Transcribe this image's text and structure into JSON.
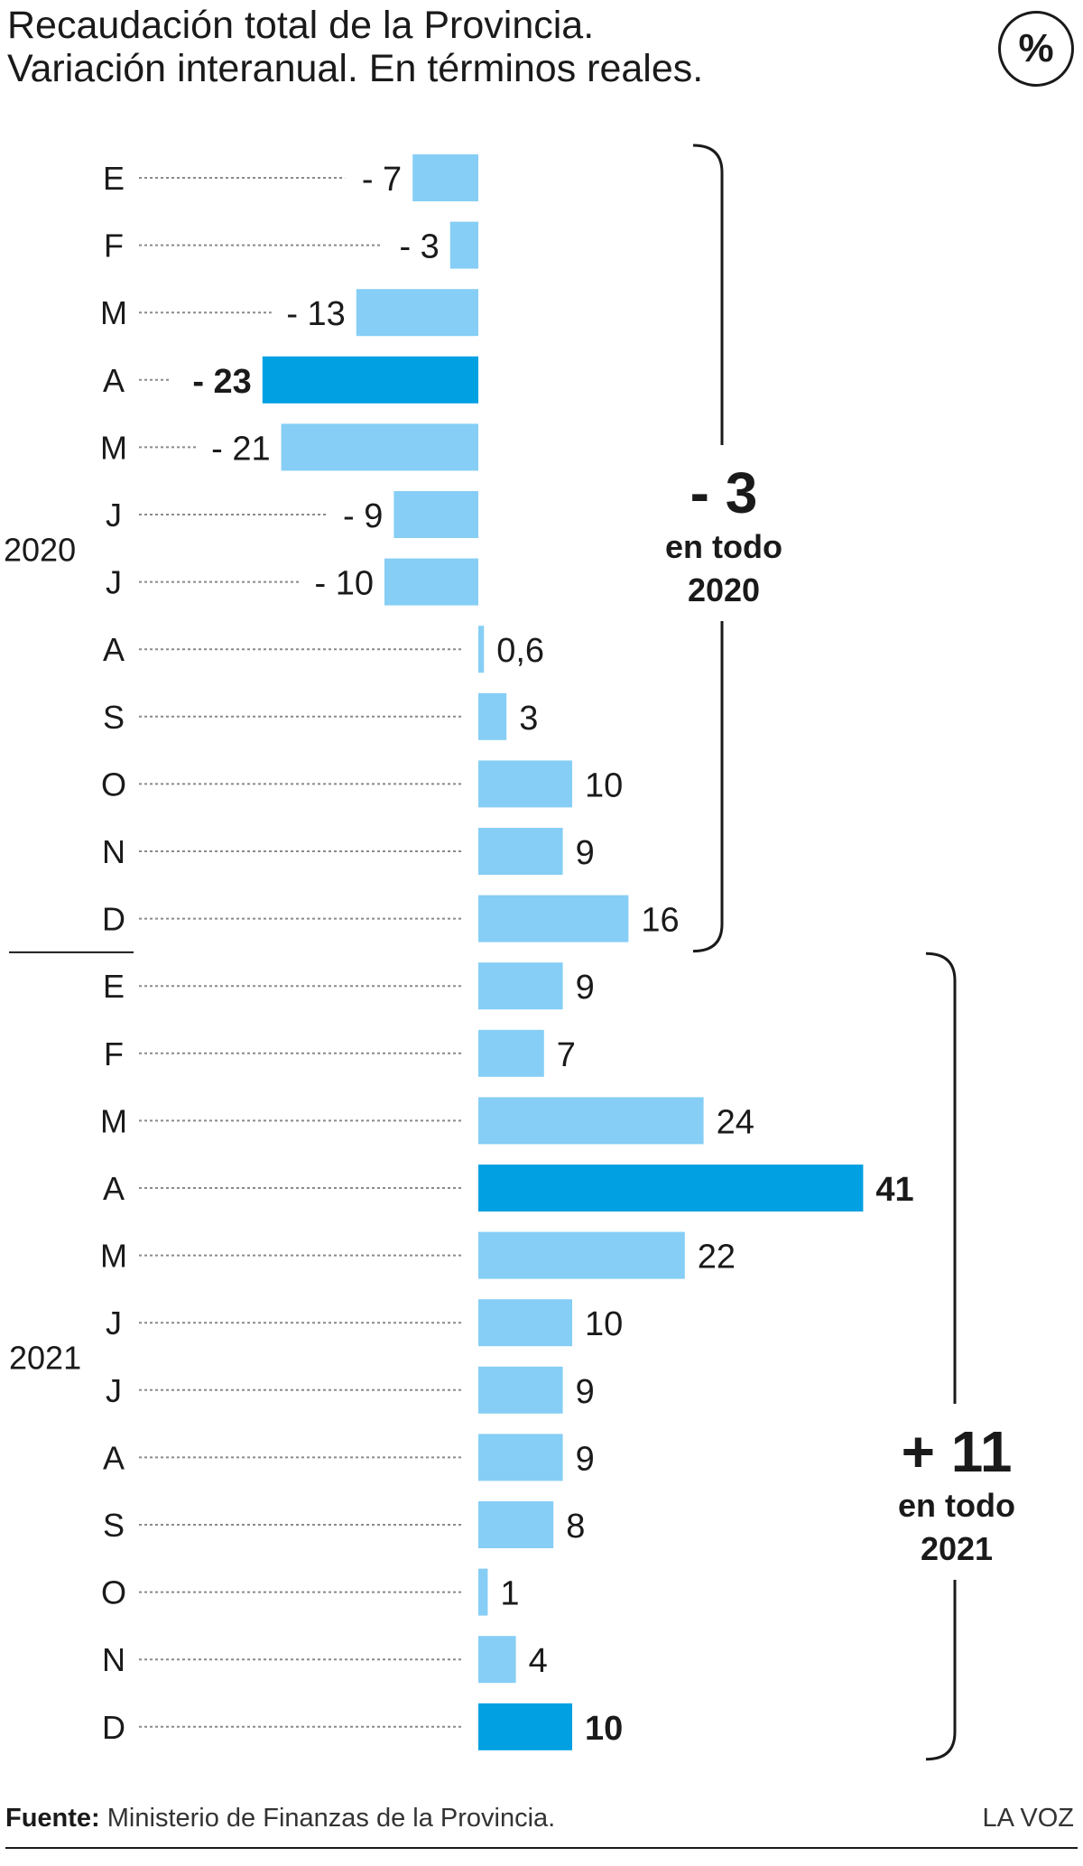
{
  "header": {
    "title_line1": "Recaudación total de la Provincia.",
    "title_line2": "Variación interanual. En términos reales.",
    "unit": "%"
  },
  "chart_data": {
    "type": "bar",
    "orientation": "horizontal",
    "title": "Recaudación total de la Provincia. Variación interanual. En términos reales.",
    "unit": "%",
    "groups": [
      {
        "year": "2020",
        "categories": [
          "E",
          "F",
          "M",
          "A",
          "M",
          "J",
          "J",
          "A",
          "S",
          "O",
          "N",
          "D"
        ],
        "values": [
          -7,
          -3,
          -13,
          -23,
          -21,
          -9,
          -10,
          0.6,
          3,
          10,
          9,
          16
        ],
        "labels": [
          "- 7",
          "- 3",
          "- 13",
          "- 23",
          "- 21",
          "- 9",
          "- 10",
          "0,6",
          "3",
          "10",
          "9",
          "16"
        ],
        "highlight": [
          false,
          false,
          false,
          true,
          false,
          false,
          false,
          false,
          false,
          false,
          false,
          false
        ],
        "annual_value": "- 3",
        "annual_label_line1": "en todo",
        "annual_label_line2": "2020"
      },
      {
        "year": "2021",
        "categories": [
          "E",
          "F",
          "M",
          "A",
          "M",
          "J",
          "J",
          "A",
          "S",
          "O",
          "N",
          "D"
        ],
        "values": [
          9,
          7,
          24,
          41,
          22,
          10,
          9,
          9,
          8,
          1,
          4,
          10
        ],
        "labels": [
          "9",
          "7",
          "24",
          "41",
          "22",
          "10",
          "9",
          "9",
          "8",
          "1",
          "4",
          "10"
        ],
        "highlight": [
          false,
          false,
          false,
          true,
          false,
          false,
          false,
          false,
          false,
          false,
          false,
          true
        ],
        "annual_value": "+ 11",
        "annual_label_line1": "en todo",
        "annual_label_line2": "2021"
      }
    ],
    "xlim": [
      -25,
      45
    ],
    "grid": false,
    "colors": {
      "bar": "#86cef5",
      "highlight": "#00a0e3",
      "text": "#1a1a1a",
      "leader": "#8a8a8a"
    }
  },
  "footer": {
    "source_label": "Fuente:",
    "source_text": " Ministerio de Finanzas de la Provincia.",
    "brand": "LA VOZ"
  }
}
